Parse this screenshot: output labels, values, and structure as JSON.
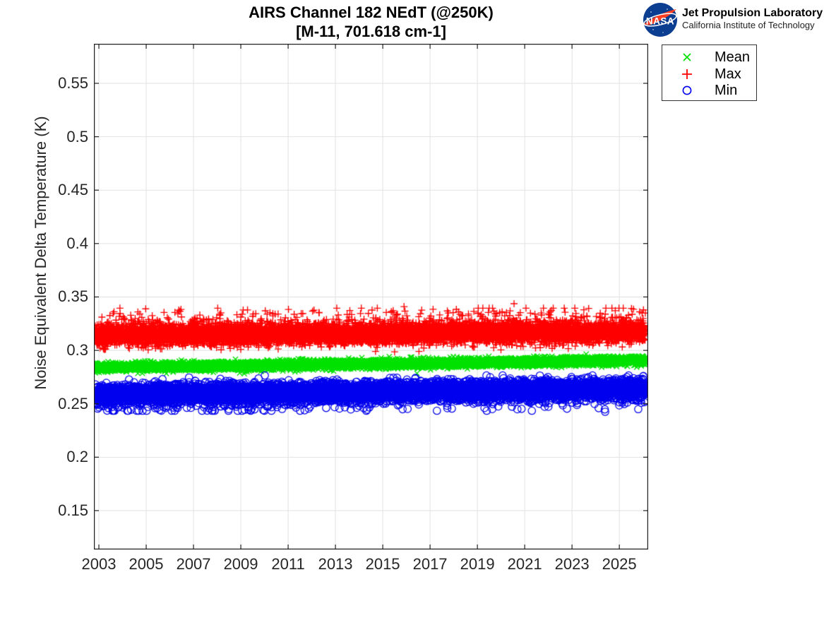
{
  "figure": {
    "title_line1": "AIRS Channel 182 NEdT (@250K)",
    "title_line2": "[M-11, 701.618 cm-1]"
  },
  "branding": {
    "logo": "nasa-meatball-logo",
    "logo_text": "NASA",
    "org_name": "Jet Propulsion Laboratory",
    "org_sub": "California Institute of Technology",
    "logo_blue": "#0b3d91",
    "logo_red": "#fc3d21"
  },
  "legend": {
    "position": "outside-top-right",
    "items": [
      {
        "label": "Mean",
        "marker": "x",
        "color": "#00e100"
      },
      {
        "label": "Max",
        "marker": "+",
        "color": "#ff0000"
      },
      {
        "label": "Min",
        "marker": "o",
        "color": "#0000ee"
      }
    ]
  },
  "chart_data": {
    "type": "scatter",
    "title": "AIRS Channel 182 NEdT (@250K)",
    "subtitle": "[M-11, 701.618 cm-1]",
    "xlabel": "",
    "ylabel": "Noise Equivalent Delta Temperature (K)",
    "xlim": [
      2002.79,
      2026.22
    ],
    "ylim": [
      0.1136,
      0.587
    ],
    "xticks": [
      2003,
      2005,
      2007,
      2009,
      2011,
      2013,
      2015,
      2017,
      2019,
      2021,
      2023,
      2025
    ],
    "yticks": [
      0.15,
      0.2,
      0.25,
      0.3,
      0.35,
      0.4,
      0.45,
      0.5,
      0.55
    ],
    "grid": true,
    "grid_color": "#e2e2e2",
    "axis_color": "#222222",
    "tick_label_color": "#262626",
    "x_data_range": [
      2002.83,
      2026.1
    ],
    "points_per_series": 8500,
    "series": [
      {
        "name": "Max",
        "marker": "+",
        "color": "#ff0000",
        "trend_start": 0.3145,
        "trend_end": 0.3175,
        "sigma": 0.0048,
        "band_core": [
          0.302,
          0.33
        ],
        "tail": {
          "direction": 1,
          "prob": 0.035,
          "min": 0.006,
          "max": 0.02
        },
        "clamp": [
          0.296,
          0.3395
        ],
        "outliers": [
          [
            2004.65,
            0.336
          ],
          [
            2009.1,
            0.3378
          ],
          [
            2012.3,
            0.3355
          ],
          [
            2015.9,
            0.341
          ],
          [
            2018.2,
            0.336
          ],
          [
            2020.55,
            0.3437
          ],
          [
            2023.5,
            0.338
          ],
          [
            2025.6,
            0.3385
          ]
        ]
      },
      {
        "name": "Mean",
        "marker": "x",
        "color": "#00e100",
        "trend_start": 0.2838,
        "trend_end": 0.2907,
        "sigma": 0.0019,
        "band_core": [
          0.281,
          0.293
        ],
        "tail": {
          "direction": 1,
          "prob": 0.0,
          "min": 0,
          "max": 0
        },
        "clamp": [
          0.278,
          0.2945
        ],
        "outliers": [
          [
            2023.6,
            0.2965
          ]
        ]
      },
      {
        "name": "Min",
        "marker": "o",
        "color": "#0000ee",
        "trend_start": 0.2585,
        "trend_end": 0.2645,
        "sigma": 0.0042,
        "band_core": [
          0.248,
          0.274
        ],
        "tail": {
          "direction": -1,
          "prob": 0.03,
          "min": 0.004,
          "max": 0.016
        },
        "clamp": [
          0.2435,
          0.2765
        ],
        "outliers": [
          [
            2002.95,
            0.2455
          ],
          [
            2003.35,
            0.2436
          ],
          [
            2010.3,
            0.2468
          ],
          [
            2013.9,
            0.2462
          ],
          [
            2016.05,
            0.2452
          ],
          [
            2019.3,
            0.246
          ],
          [
            2022.0,
            0.2472
          ],
          [
            2024.4,
            0.2425
          ],
          [
            2025.8,
            0.245
          ]
        ]
      }
    ],
    "summary": {
      "max_band_K": "dense 0.302-0.330, center ~0.316, spikes to 0.344",
      "mean_band_K": "tight 0.281-0.293, rising 0.284 to 0.291",
      "min_band_K": "dense 0.248-0.274, center ~0.260, dips to 0.242"
    }
  }
}
